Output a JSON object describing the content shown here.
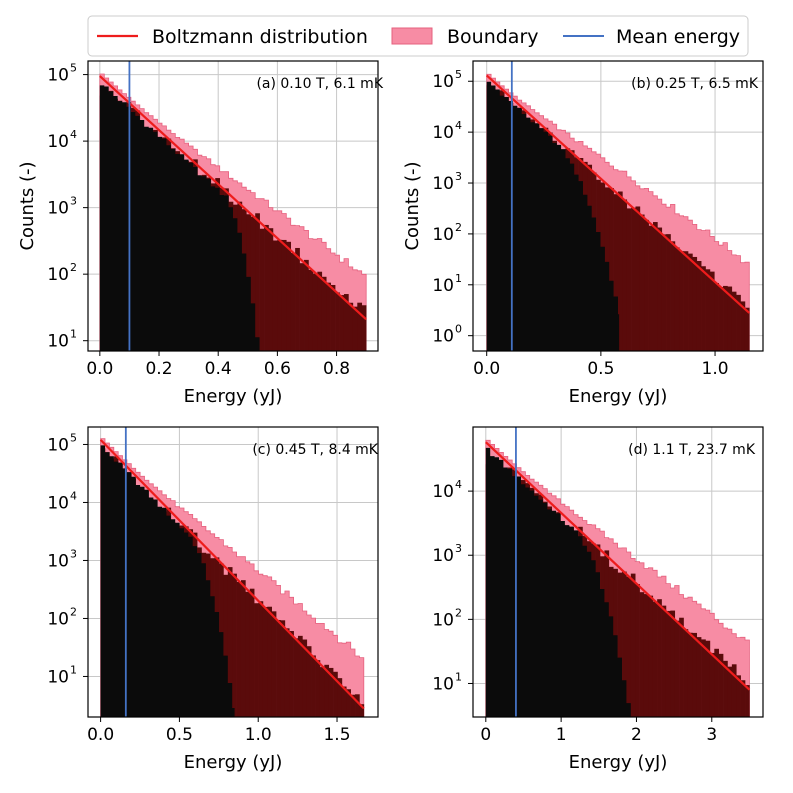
{
  "legend": {
    "placement": "top-center",
    "items": [
      {
        "label": "Boltzmann distribution",
        "kind": "line",
        "color": "#ee1c1c"
      },
      {
        "label": "Boundary",
        "kind": "patch",
        "color": "#f78ca4"
      },
      {
        "label": "Mean energy",
        "kind": "line",
        "color": "#4472c4"
      }
    ]
  },
  "colors": {
    "boltzmann": "#ee1c1c",
    "boundary": "#f78ca4",
    "boundary_edge": "#e6607e",
    "mean": "#4472c4",
    "dark_hist": "#0b0b0b",
    "red_hist": "#5a0b0b",
    "grid": "#c8c8c8"
  },
  "chart_data": [
    {
      "type": "area",
      "title": "(a) 0.10 T,  6.1 mK",
      "xlabel": "Energy (yJ)",
      "ylabel": "Counts (-)",
      "yscale": "log",
      "xlim": [
        -0.04,
        0.94
      ],
      "ylim": [
        7,
        160000
      ],
      "xticks": [
        0.0,
        0.2,
        0.4,
        0.6,
        0.8
      ],
      "xtick_labels": [
        "0.0",
        "0.2",
        "0.4",
        "0.6",
        "0.8"
      ],
      "yticks": [
        10,
        100,
        1000,
        10000,
        100000
      ],
      "ytick_labels": [
        "10",
        "10",
        "10",
        "10",
        "10"
      ],
      "ytick_exponents": [
        "1",
        "2",
        "3",
        "4",
        "5"
      ],
      "x_max": 0.9,
      "fit": {
        "y0": 95000,
        "x1": 0.9,
        "y1": 21
      },
      "mean_energy": 0.1,
      "dark_cutoff": 0.55,
      "dark_drop_start": 0.42,
      "red_offset": 0.06,
      "bins": 60,
      "boundary_growth": 3.2
    },
    {
      "type": "area",
      "title": "(b) 0.25 T,  6.5 mK",
      "xlabel": "Energy (yJ)",
      "ylabel": "Counts (-)",
      "yscale": "log",
      "xlim": [
        -0.06,
        1.21
      ],
      "ylim": [
        0.5,
        250000
      ],
      "xticks": [
        0.0,
        0.5,
        1.0
      ],
      "xtick_labels": [
        "0.0",
        "0.5",
        "1.0"
      ],
      "yticks": [
        1,
        10,
        100,
        1000,
        10000,
        100000
      ],
      "ytick_labels": [
        "10",
        "10",
        "10",
        "10",
        "10",
        "10"
      ],
      "ytick_exponents": [
        "0",
        "1",
        "2",
        "3",
        "4",
        "5"
      ],
      "x_max": 1.15,
      "fit": {
        "y0": 130000,
        "x1": 1.15,
        "y1": 2.8
      },
      "mean_energy": 0.11,
      "dark_cutoff": 0.58,
      "dark_drop_start": 0.3,
      "red_offset": 0.1,
      "bins": 60,
      "boundary_growth": 8.0
    },
    {
      "type": "area",
      "title": "(c) 0.45 T,  8.4 mK",
      "xlabel": "Energy (yJ)",
      "ylabel": "",
      "yscale": "log",
      "xlim": [
        -0.08,
        1.76
      ],
      "ylim": [
        2,
        200000
      ],
      "xticks": [
        0.0,
        0.5,
        1.0,
        1.5
      ],
      "xtick_labels": [
        "0.0",
        "0.5",
        "1.0",
        "1.5"
      ],
      "yticks": [
        10,
        100,
        1000,
        10000,
        100000
      ],
      "ytick_labels": [
        "10",
        "10",
        "10",
        "10",
        "10"
      ],
      "ytick_exponents": [
        "1",
        "2",
        "3",
        "4",
        "5"
      ],
      "x_max": 1.67,
      "fit": {
        "y0": 120000,
        "x1": 1.67,
        "y1": 2.8
      },
      "mean_energy": 0.16,
      "dark_cutoff": 0.85,
      "dark_drop_start": 0.55,
      "red_offset": 0.15,
      "bins": 60,
      "boundary_growth": 6.0
    },
    {
      "type": "area",
      "title": "(d) 1.1 T,  23.7 mK",
      "xlabel": "Energy (yJ)",
      "ylabel": "",
      "yscale": "log",
      "xlim": [
        -0.17,
        3.68
      ],
      "ylim": [
        3,
        100000
      ],
      "xticks": [
        0,
        1,
        2,
        3
      ],
      "xtick_labels": [
        "0",
        "1",
        "2",
        "3"
      ],
      "yticks": [
        10,
        100,
        1000,
        10000
      ],
      "ytick_labels": [
        "10",
        "10",
        "10",
        "10"
      ],
      "ytick_exponents": [
        "1",
        "2",
        "3",
        "4"
      ],
      "x_max": 3.5,
      "fit": {
        "y0": 58000,
        "x1": 3.5,
        "y1": 8
      },
      "mean_energy": 0.4,
      "dark_cutoff": 1.95,
      "dark_drop_start": 1.2,
      "red_offset": 0.3,
      "bins": 60,
      "boundary_growth": 4.0
    }
  ]
}
